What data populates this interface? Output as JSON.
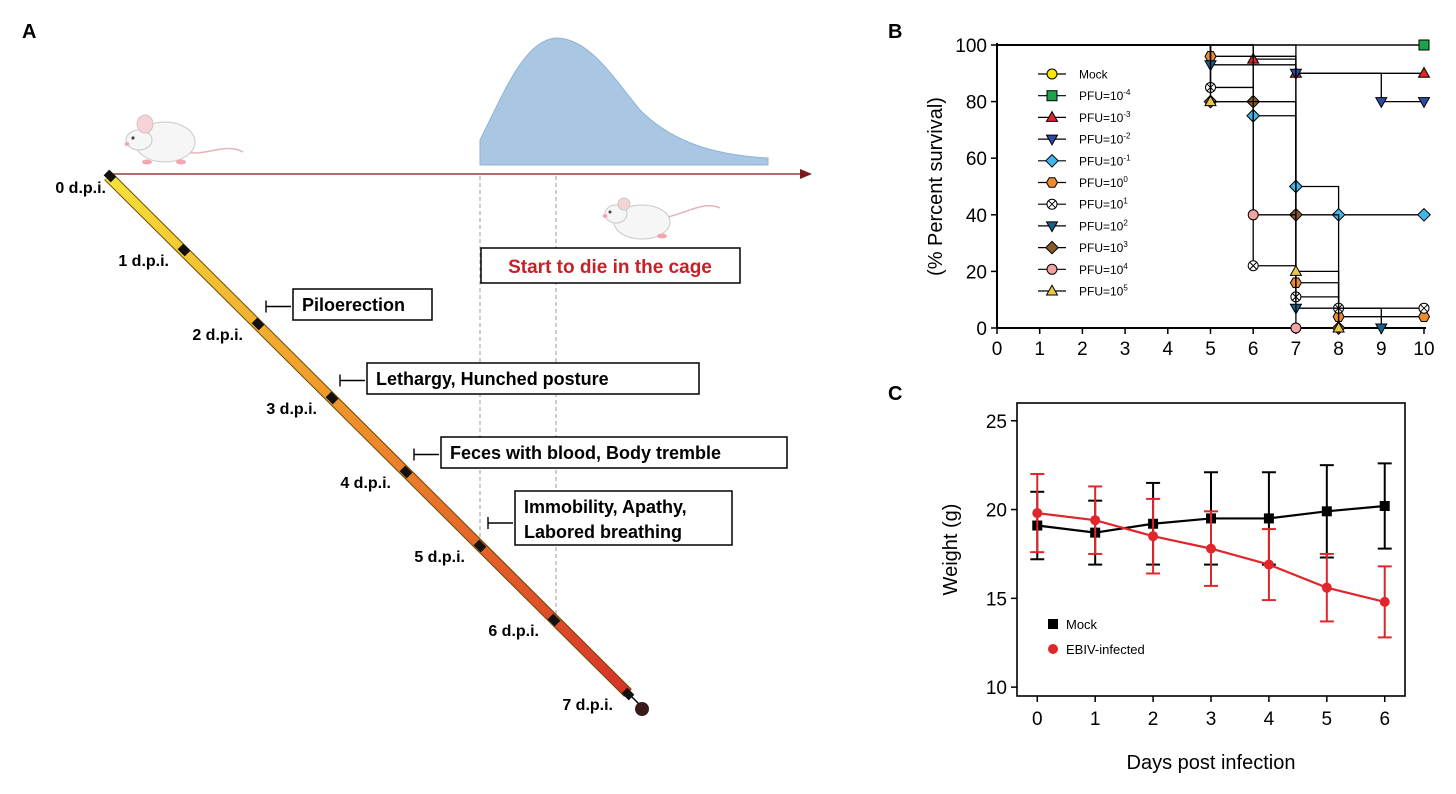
{
  "panels": {
    "a": {
      "letter": "A"
    },
    "b": {
      "letter": "B"
    },
    "c": {
      "letter": "C"
    }
  },
  "timeline": {
    "dpi_labels": [
      "0 d.p.i.",
      "1 d.p.i.",
      "2 d.p.i.",
      "3 d.p.i.",
      "4 d.p.i.",
      "5 d.p.i.",
      "6 d.p.i.",
      "7 d.p.i."
    ],
    "symptoms": [
      {
        "dpi": 2,
        "lines": [
          "Piloerection"
        ]
      },
      {
        "dpi": 3,
        "lines": [
          "Lethargy, Hunched posture"
        ]
      },
      {
        "dpi": 4,
        "lines": [
          "Feces with blood, Body tremble"
        ]
      },
      {
        "dpi": 5,
        "lines": [
          "Immobility, Apathy,",
          "Labored breathing"
        ]
      }
    ],
    "death_label": "Start to die in the cage",
    "colors": {
      "start": "#f5e23a",
      "mid": "#ee8a2a",
      "end": "#d6322a",
      "death_curve": "#a9c7e3",
      "death_text": "#c62127",
      "axis_arrow": "#7a1a1a"
    },
    "mouse_icons": [
      "mouse-icon",
      "mouse-icon"
    ]
  },
  "chart_data": [
    {
      "panel": "B",
      "type": "line",
      "step": true,
      "xlabel": "",
      "ylabel": "(% Percent survival)",
      "xlim": [
        0,
        10
      ],
      "ylim": [
        0,
        100
      ],
      "xticks": [
        0,
        1,
        2,
        3,
        4,
        5,
        6,
        7,
        8,
        9,
        10
      ],
      "yticks": [
        0,
        20,
        40,
        60,
        80,
        100
      ],
      "legend_position": "upper-left",
      "series": [
        {
          "name": "Mock",
          "name_base": "Mock",
          "name_exp": "",
          "color": "#ffe600",
          "marker": "circle",
          "x": [
            0,
            10
          ],
          "y": [
            100,
            100
          ]
        },
        {
          "name": "PFU=10⁻⁴",
          "name_base": "PFU=10",
          "name_exp": "-4",
          "color": "#1fa34a",
          "marker": "square",
          "x": [
            0,
            10
          ],
          "y": [
            100,
            100
          ]
        },
        {
          "name": "PFU=10⁻³",
          "name_base": "PFU=10",
          "name_exp": "-3",
          "color": "#e0262b",
          "marker": "triangle-up",
          "x": [
            0,
            6,
            7,
            10
          ],
          "y": [
            100,
            95,
            90,
            90
          ]
        },
        {
          "name": "PFU=10⁻²",
          "name_base": "PFU=10",
          "name_exp": "-2",
          "color": "#2d4aa5",
          "marker": "triangle-down",
          "x": [
            0,
            7,
            9,
            10
          ],
          "y": [
            100,
            90,
            80,
            80
          ]
        },
        {
          "name": "PFU=10⁻¹",
          "name_base": "PFU=10",
          "name_exp": "-1",
          "color": "#3fb7e8",
          "marker": "diamond",
          "x": [
            0,
            6,
            7,
            8,
            10
          ],
          "y": [
            100,
            75,
            50,
            40,
            40
          ]
        },
        {
          "name": "PFU=10⁰",
          "name_base": "PFU=10",
          "name_exp": "0",
          "color": "#f08a30",
          "marker": "hexagon",
          "x": [
            0,
            5,
            7,
            8,
            10
          ],
          "y": [
            100,
            96,
            16,
            4,
            4
          ]
        },
        {
          "name": "PFU=10¹",
          "name_base": "PFU=10",
          "name_exp": "1",
          "color": "#ffffff",
          "marker": "circle-cross",
          "x": [
            0,
            5,
            6,
            7,
            8,
            10
          ],
          "y": [
            100,
            85,
            22,
            11,
            7,
            7
          ]
        },
        {
          "name": "PFU=10²",
          "name_base": "PFU=10",
          "name_exp": "2",
          "color": "#1a5e8a",
          "marker": "triangle-down",
          "x": [
            0,
            5,
            7,
            9
          ],
          "y": [
            100,
            93,
            7,
            0
          ]
        },
        {
          "name": "PFU=10³",
          "name_base": "PFU=10",
          "name_exp": "3",
          "color": "#8a5a2b",
          "marker": "diamond",
          "x": [
            0,
            5,
            6,
            7,
            8
          ],
          "y": [
            100,
            80,
            80,
            40,
            0
          ]
        },
        {
          "name": "PFU=10⁴",
          "name_base": "PFU=10",
          "name_exp": "4",
          "color": "#f3a3a3",
          "marker": "circle",
          "x": [
            0,
            6,
            7
          ],
          "y": [
            100,
            40,
            0
          ]
        },
        {
          "name": "PFU=10⁵",
          "name_base": "PFU=10",
          "name_exp": "5",
          "color": "#e8c84a",
          "marker": "triangle-up",
          "x": [
            0,
            5,
            7,
            8
          ],
          "y": [
            100,
            80,
            20,
            0
          ]
        }
      ]
    },
    {
      "panel": "C",
      "type": "line",
      "xlabel": "Days post infection",
      "ylabel": "Weight (g)",
      "xlim": [
        -0.35,
        6.35
      ],
      "ylim": [
        9.5,
        26
      ],
      "xticks": [
        0,
        1,
        2,
        3,
        4,
        5,
        6
      ],
      "yticks": [
        10,
        15,
        20,
        25
      ],
      "legend_position": "lower-left",
      "series": [
        {
          "name": "Mock",
          "color": "#000000",
          "marker": "square",
          "x": [
            0,
            1,
            2,
            3,
            4,
            5,
            6
          ],
          "y": [
            19.1,
            18.7,
            19.2,
            19.5,
            19.5,
            19.9,
            20.2
          ],
          "err": [
            1.9,
            1.8,
            2.3,
            2.6,
            2.6,
            2.6,
            2.4
          ]
        },
        {
          "name": "EBIV-infected",
          "color": "#e0262b",
          "marker": "circle",
          "x": [
            0,
            1,
            2,
            3,
            4,
            5,
            6
          ],
          "y": [
            19.8,
            19.4,
            18.5,
            17.8,
            16.9,
            15.6,
            14.8
          ],
          "err": [
            2.2,
            1.9,
            2.1,
            2.1,
            2.0,
            1.9,
            2.0
          ]
        }
      ]
    }
  ]
}
